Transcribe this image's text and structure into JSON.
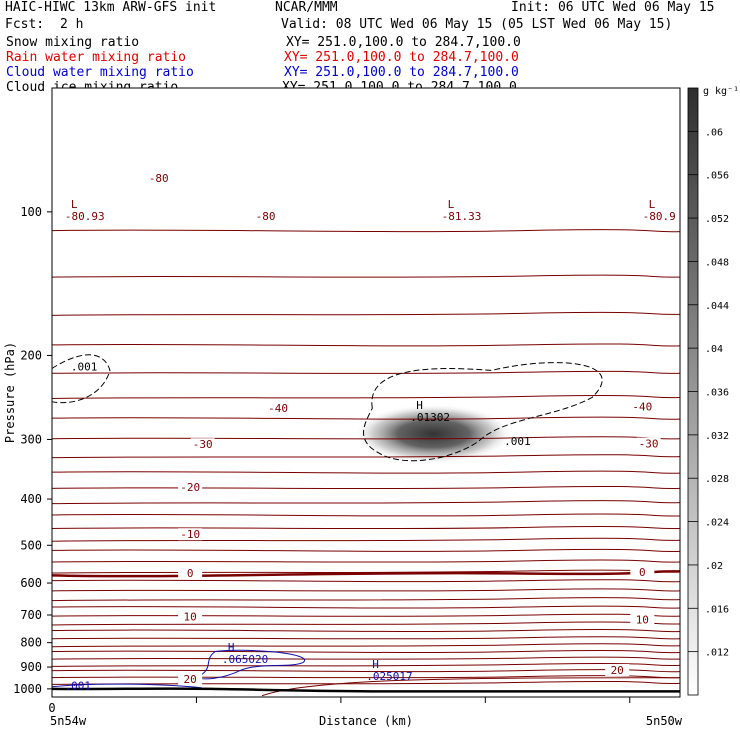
{
  "header": {
    "model": "HAIC-HIWC 13km ARW-GFS init",
    "center": "NCAR/MMM",
    "init": "Init: 06 UTC Wed 06 May 15",
    "fcst_label": "Fcst:",
    "fcst_value": "2 h",
    "valid": "Valid: 08 UTC Wed 06 May 15 (05 LST Wed 06 May 15)"
  },
  "fields": [
    {
      "name": "Snow mixing ratio",
      "xy": "XY= 251.0,100.0 to 284.7,100.0",
      "color": "#000000"
    },
    {
      "name": "Rain water mixing ratio",
      "xy": "XY= 251.0,100.0 to 284.7,100.0",
      "color": "#e00000"
    },
    {
      "name": "Cloud water mixing ratio",
      "xy": "XY= 251.0,100.0 to 284.7,100.0",
      "color": "#0000d0"
    },
    {
      "name": "Cloud ice mixing ratio",
      "xy": "XY= 251.0,100.0 to 284.7,100.0",
      "color": "#000000"
    }
  ],
  "colors": {
    "temperature": "#7a0000",
    "cloud_water": "#1010b0",
    "snow": "#000000",
    "terrain": "#000000"
  },
  "chart_data": {
    "type": "contour-cross-section",
    "xlabel": "Distance (km)",
    "ylabel": "Pressure (hPa)",
    "x_tick_label": "0",
    "xlim_label_left": "5n54w",
    "xlim_label_right": "5n50w",
    "ylim": [
      1040,
      55
    ],
    "y_ticks": [
      100,
      200,
      300,
      400,
      500,
      600,
      700,
      800,
      900,
      1000
    ],
    "colorbar": {
      "unit": "g kg⁻¹",
      "ticks": [
        0.06,
        0.056,
        0.052,
        0.048,
        0.044,
        0.04,
        0.036,
        0.032,
        0.028,
        0.024,
        0.02,
        0.016,
        0.012
      ]
    },
    "temperature_contour_labels": [
      {
        "label": "-80",
        "x": 0.17,
        "p": 85
      },
      {
        "label": "-80",
        "x": 0.34,
        "p": 102
      },
      {
        "label": "-40",
        "x": 0.36,
        "p": 258
      },
      {
        "label": "-40",
        "x": 0.94,
        "p": 256
      },
      {
        "label": "-30",
        "x": 0.24,
        "p": 307
      },
      {
        "label": "-30",
        "x": 0.95,
        "p": 306
      },
      {
        "label": "-20",
        "x": 0.22,
        "p": 377
      },
      {
        "label": "-10",
        "x": 0.22,
        "p": 474
      },
      {
        "label": "0",
        "x": 0.22,
        "p": 571
      },
      {
        "label": "0",
        "x": 0.94,
        "p": 569
      },
      {
        "label": "10",
        "x": 0.22,
        "p": 705
      },
      {
        "label": "10",
        "x": 0.94,
        "p": 715
      },
      {
        "label": "20",
        "x": 0.22,
        "p": 954
      },
      {
        "label": "20",
        "x": 0.9,
        "p": 913
      }
    ],
    "extrema": [
      {
        "field": "temperature",
        "kind": "L",
        "value": "-80.93",
        "x": 0.03,
        "p": 103
      },
      {
        "field": "temperature",
        "kind": "L",
        "value": "-81.33",
        "x": 0.63,
        "p": 103
      },
      {
        "field": "temperature",
        "kind": "L",
        "value": "-80.9",
        "x": 0.95,
        "p": 103
      },
      {
        "field": "cloud_ice",
        "kind": "H",
        "value": ".01302",
        "x": 0.58,
        "p": 272
      },
      {
        "field": "cloud_water",
        "kind": "H",
        "value": ".065020",
        "x": 0.28,
        "p": 875
      },
      {
        "field": "cloud_water",
        "kind": "H",
        "value": ".025017",
        "x": 0.51,
        "p": 948
      }
    ],
    "contour_labels": [
      {
        "field": "cloud_ice",
        "label": ".001",
        "x": 0.03,
        "p": 211
      },
      {
        "field": "cloud_ice",
        "label": ".001",
        "x": 0.72,
        "p": 302
      },
      {
        "field": "cloud_water",
        "label": ".001",
        "x": 0.02,
        "p": 985
      }
    ],
    "snow_max": {
      "value": 0.06,
      "x": 0.62,
      "p": 295
    }
  }
}
